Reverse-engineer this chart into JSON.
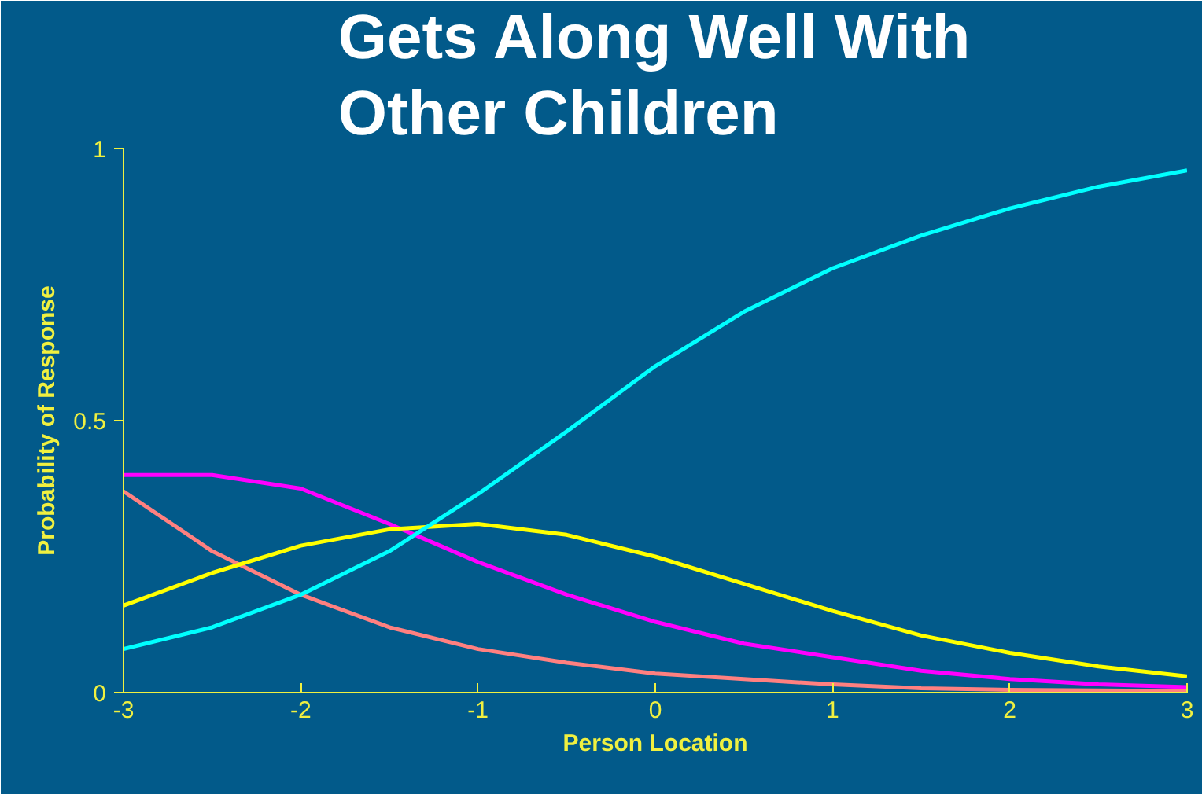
{
  "chart_data": {
    "type": "line",
    "title": "Gets Along Well With Other Children",
    "xlabel": "Person Location",
    "ylabel": "Probability of Response",
    "x": [
      -3,
      -2.5,
      -2,
      -1.5,
      -1,
      -0.5,
      0,
      0.5,
      1,
      1.5,
      2,
      2.5,
      3
    ],
    "xlim": [
      -3,
      3
    ],
    "xticks": [
      -3,
      -2,
      -1,
      0,
      1,
      2,
      3
    ],
    "ylim": [
      0,
      1
    ],
    "yticks": [
      0,
      0.5,
      1
    ],
    "grid": false,
    "marker": "none",
    "line_style": "solid",
    "series": [
      {
        "color": "#ff8080",
        "values": [
          0.37,
          0.26,
          0.18,
          0.12,
          0.08,
          0.055,
          0.035,
          0.025,
          0.015,
          0.008,
          0.005,
          0.004,
          0.003
        ]
      },
      {
        "color": "#ff00ff",
        "values": [
          0.4,
          0.4,
          0.375,
          0.31,
          0.24,
          0.18,
          0.13,
          0.09,
          0.065,
          0.04,
          0.025,
          0.015,
          0.01
        ]
      },
      {
        "color": "#ffff00",
        "values": [
          0.16,
          0.22,
          0.27,
          0.3,
          0.31,
          0.29,
          0.25,
          0.2,
          0.15,
          0.105,
          0.073,
          0.048,
          0.03
        ]
      },
      {
        "color": "#00ffff",
        "values": [
          0.08,
          0.12,
          0.18,
          0.26,
          0.365,
          0.48,
          0.6,
          0.7,
          0.78,
          0.84,
          0.89,
          0.93,
          0.96
        ]
      }
    ]
  }
}
